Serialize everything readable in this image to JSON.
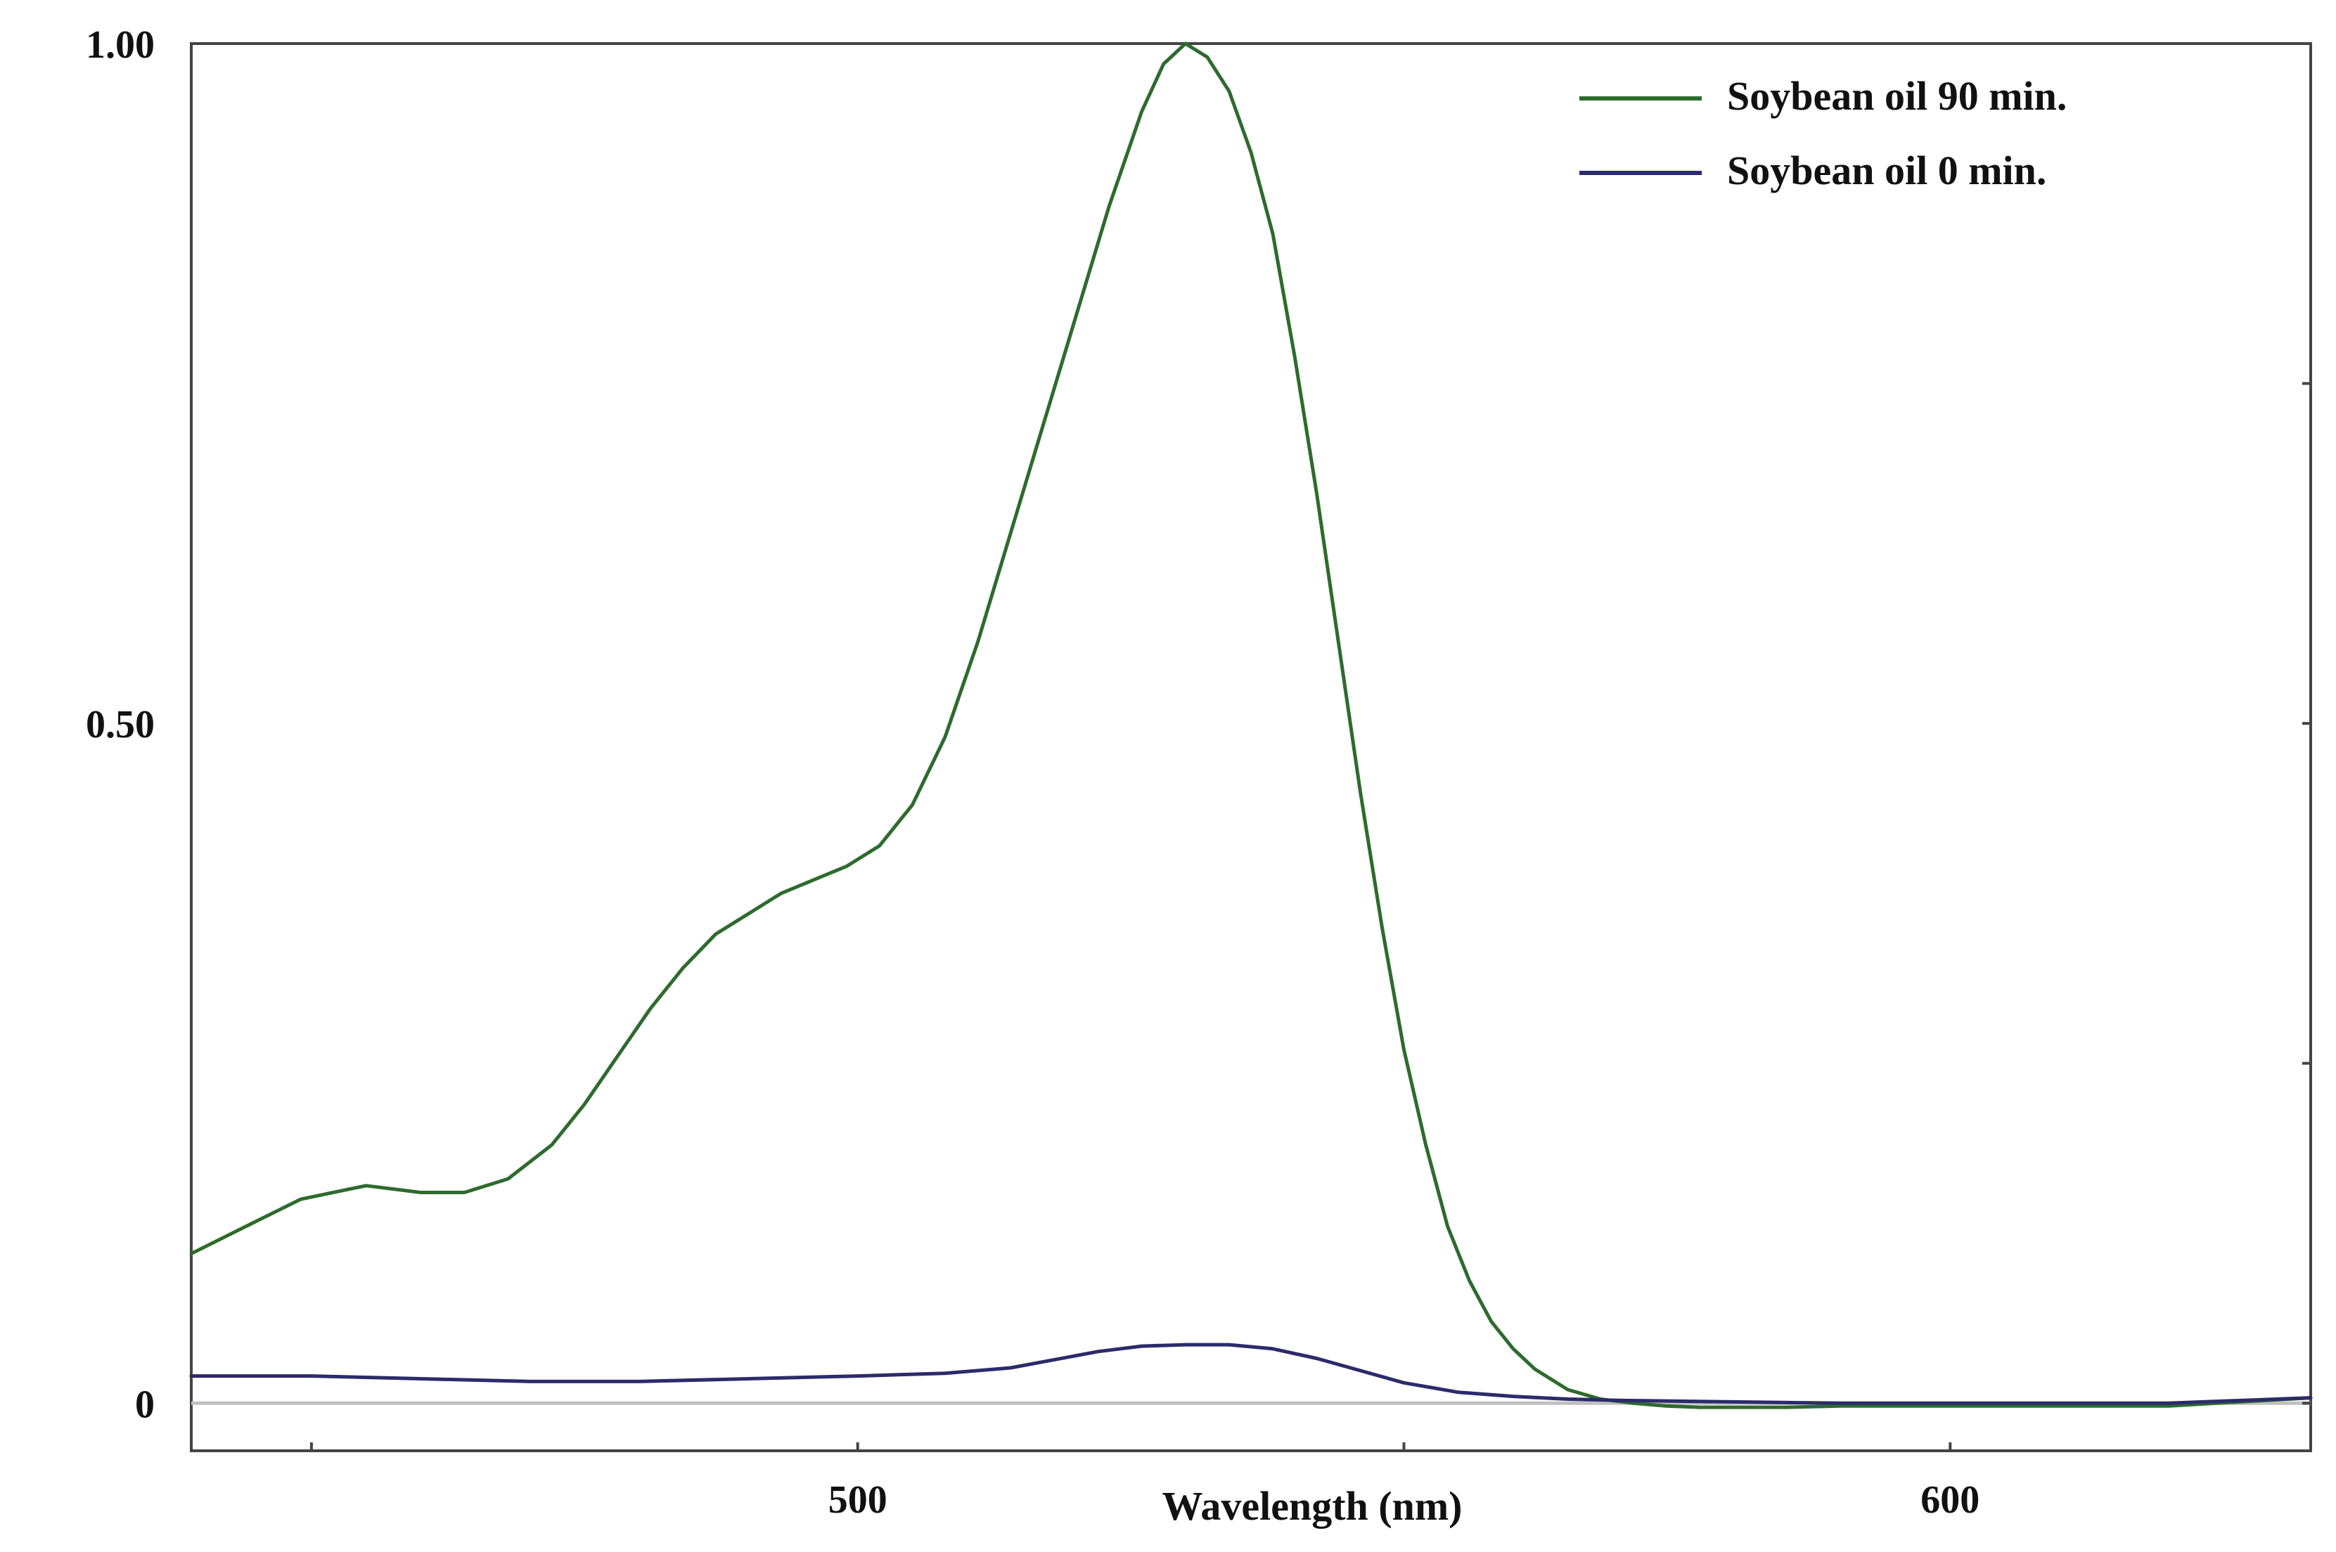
{
  "chart_data": {
    "type": "line",
    "title": "",
    "xlabel": "Wavelength (nm)",
    "ylabel": "",
    "xlim": [
      439,
      633
    ],
    "ylim": [
      -0.035,
      1.0
    ],
    "x_ticks": [
      {
        "value": 450,
        "label": ""
      },
      {
        "value": 500,
        "label": "500"
      },
      {
        "value": 550,
        "label": ""
      },
      {
        "value": 600,
        "label": "600"
      }
    ],
    "y_ticks": [
      {
        "value": 1.0,
        "label": "1.00"
      },
      {
        "value": 0.75,
        "label": ""
      },
      {
        "value": 0.5,
        "label": "0.50"
      },
      {
        "value": 0.25,
        "label": ""
      },
      {
        "value": 0.0,
        "label": "0"
      }
    ],
    "grid": false,
    "baseline": {
      "value": 0,
      "color": "#c0c0c0"
    },
    "legend": {
      "position": "top-right"
    },
    "series": [
      {
        "name": "Soybean oil 90 min.",
        "color": "#2e6b2e",
        "x": [
          439,
          444,
          449,
          455,
          460,
          464,
          468,
          472,
          475,
          478,
          481,
          484,
          487,
          490,
          493,
          496,
          499,
          502,
          505,
          508,
          511,
          514,
          517,
          520,
          523,
          526,
          528,
          530,
          532,
          534,
          536,
          538,
          540,
          542,
          544,
          546,
          548,
          550,
          552,
          554,
          556,
          558,
          560,
          562,
          565,
          568,
          571,
          574,
          577,
          580,
          585,
          590,
          600,
          610,
          620,
          633
        ],
        "y": [
          0.11,
          0.13,
          0.15,
          0.16,
          0.155,
          0.155,
          0.165,
          0.19,
          0.22,
          0.255,
          0.29,
          0.32,
          0.345,
          0.36,
          0.375,
          0.385,
          0.395,
          0.41,
          0.44,
          0.49,
          0.56,
          0.64,
          0.72,
          0.8,
          0.88,
          0.95,
          0.985,
          1.0,
          0.99,
          0.965,
          0.92,
          0.86,
          0.77,
          0.67,
          0.56,
          0.45,
          0.35,
          0.26,
          0.19,
          0.13,
          0.09,
          0.06,
          0.04,
          0.025,
          0.01,
          0.003,
          0.0,
          -0.002,
          -0.003,
          -0.003,
          -0.003,
          -0.002,
          -0.002,
          -0.002,
          -0.002,
          0.004
        ]
      },
      {
        "name": "Soybean oil 0 min.",
        "color": "#2b2b6b",
        "x": [
          439,
          450,
          460,
          470,
          480,
          490,
          500,
          508,
          514,
          518,
          522,
          526,
          530,
          534,
          538,
          542,
          546,
          550,
          555,
          560,
          565,
          570,
          580,
          590,
          600,
          610,
          620,
          633
        ],
        "y": [
          0.02,
          0.02,
          0.018,
          0.016,
          0.016,
          0.018,
          0.02,
          0.022,
          0.026,
          0.032,
          0.038,
          0.042,
          0.043,
          0.043,
          0.04,
          0.033,
          0.024,
          0.015,
          0.008,
          0.005,
          0.003,
          0.002,
          0.001,
          0.0,
          0.0,
          0.0,
          0.0,
          0.004
        ]
      }
    ]
  }
}
